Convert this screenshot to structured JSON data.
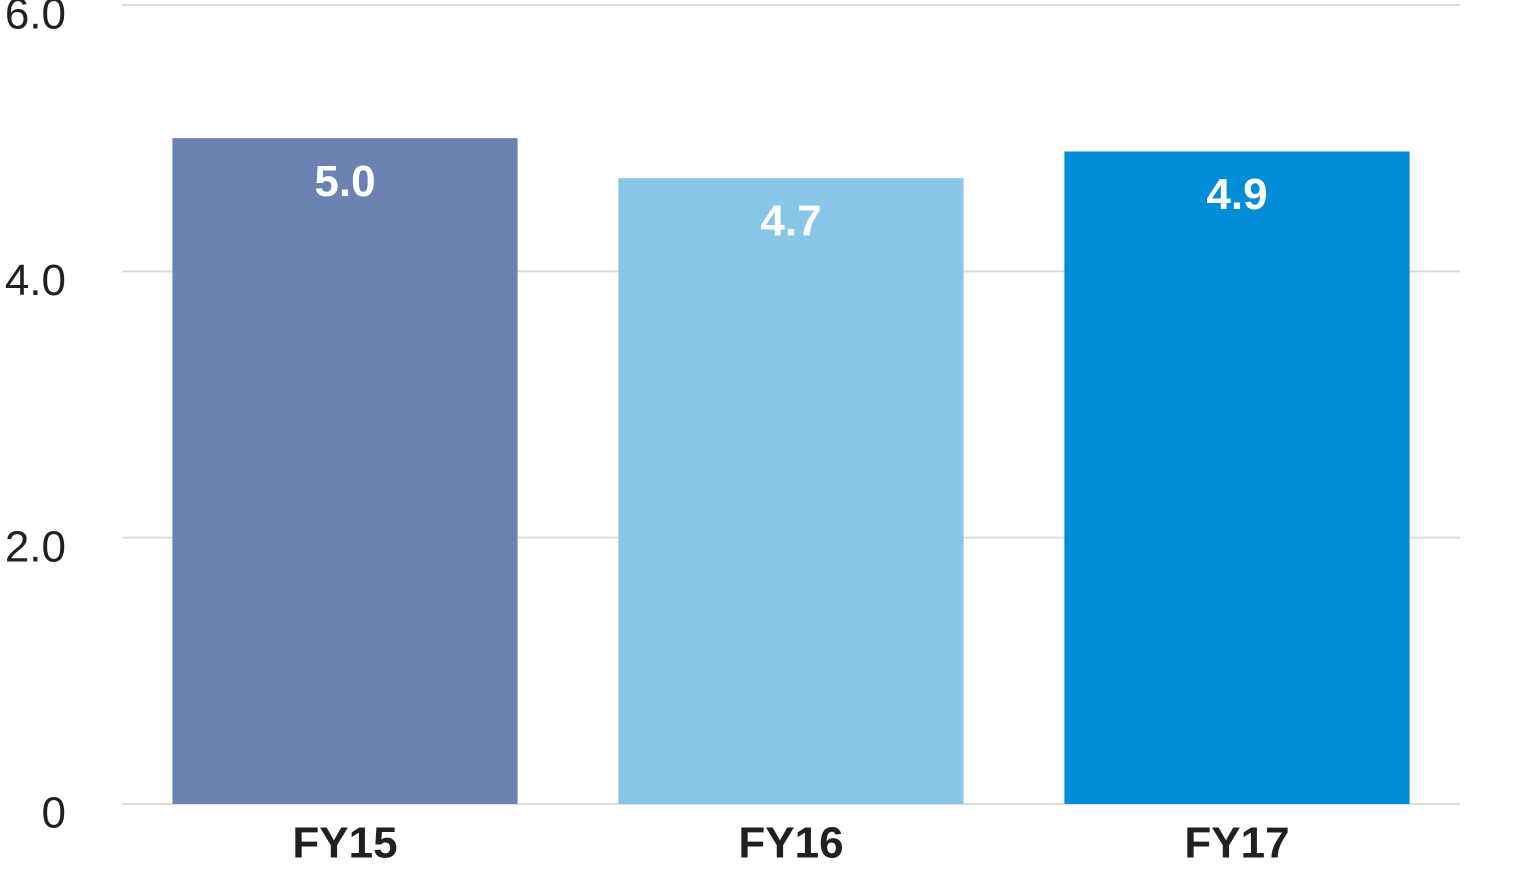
{
  "chart_data": {
    "type": "bar",
    "categories": [
      "FY15",
      "FY16",
      "FY17"
    ],
    "values": [
      5.0,
      4.7,
      4.9
    ],
    "value_labels": [
      "5.0",
      "4.7",
      "4.9"
    ],
    "colors": [
      "#6b82b2",
      "#88c6e9",
      "#008cd6"
    ],
    "ylim": [
      0,
      6
    ],
    "yticks": [
      0,
      {
        "value": 2,
        "label": "2.0"
      },
      {
        "value": 4,
        "label": "4.0"
      },
      {
        "value": 6,
        "label": "6.0"
      }
    ],
    "grid": true
  }
}
